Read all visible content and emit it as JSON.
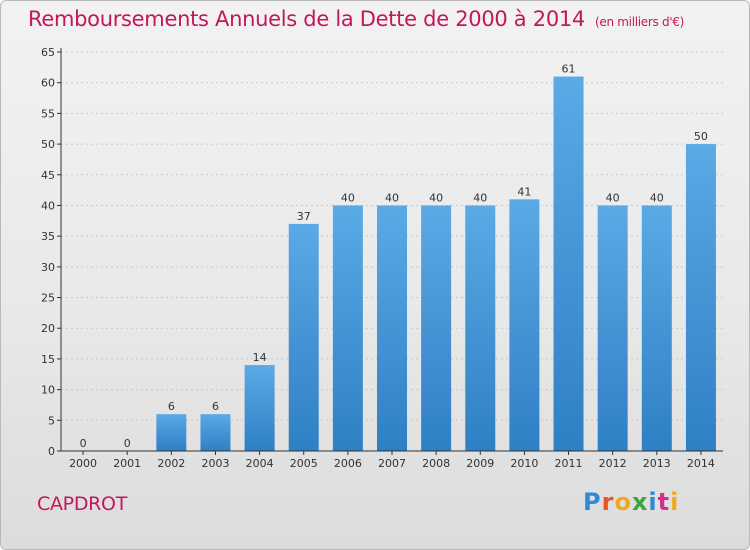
{
  "header": {
    "title": "Remboursements Annuels de la Dette de 2000 à 2014",
    "subtitle": "(en milliers d'€)"
  },
  "footer": {
    "commune": "CAPDROT",
    "logo_letters": [
      "P",
      "r",
      "o",
      "x",
      "i",
      "t",
      "i"
    ],
    "logo_colors": [
      "#2e8ad8",
      "#e8541e",
      "#f2a81d",
      "#3aa63a",
      "#2e8ad8",
      "#d42f8a",
      "#f2a81d"
    ]
  },
  "colors": {
    "bar": "#5aaae6",
    "bar_dark": "#2f7fc4",
    "axis": "#333333",
    "grid": "#c8c8c8"
  },
  "chart_data": {
    "type": "bar",
    "categories": [
      "2000",
      "2001",
      "2002",
      "2003",
      "2004",
      "2005",
      "2006",
      "2007",
      "2008",
      "2009",
      "2010",
      "2011",
      "2012",
      "2013",
      "2014"
    ],
    "values": [
      0,
      0,
      6,
      6,
      14,
      37,
      40,
      40,
      40,
      40,
      41,
      61,
      40,
      40,
      50
    ],
    "ylim": [
      0,
      65
    ],
    "yticks": [
      0,
      5,
      10,
      15,
      20,
      25,
      30,
      35,
      40,
      45,
      50,
      55,
      60,
      65
    ],
    "grid": true,
    "data_labels": true
  }
}
